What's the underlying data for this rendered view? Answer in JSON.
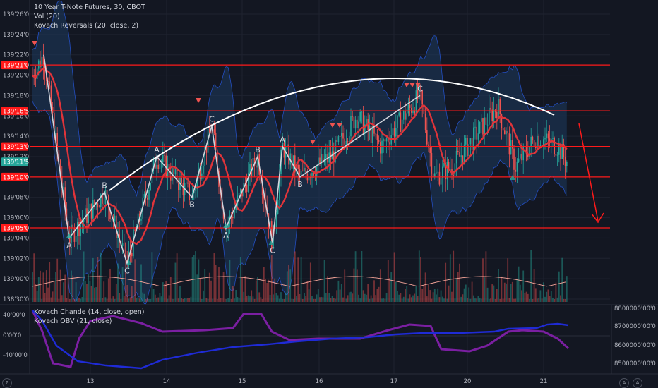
{
  "header": {
    "symbol_line": "10 Year T-Note Futures, 30, CBOT",
    "vol_label": "Vol (20)",
    "indicator_label": "Kovach Reversals (20, close, 2)"
  },
  "lower_pane": {
    "chande_label": "Kovach Chande (14, close, open)",
    "obv_label": "Kovach OBV (21, close)",
    "left_ticks": [
      "40'00'0",
      "0'00'0",
      "-40'00'0"
    ],
    "right_ticks": [
      "8800000'00'0",
      "8700000'00'0",
      "8600000'00'0",
      "8500000'00'0"
    ]
  },
  "price_axis": {
    "ticks": [
      "139'26'0",
      "139'24'0",
      "139'22'0",
      "139'20'0",
      "139'18'0",
      "139'16'0",
      "139'14'0",
      "139'12'0",
      "139'10'0",
      "139'08'0",
      "139'06'0",
      "139'04'0",
      "139'02'0",
      "139'00'0",
      "138'30'0"
    ],
    "level_tags": [
      "139'21'0",
      "139'16'5",
      "139'13'0",
      "139'11'5",
      "139'10'0",
      "139'05'0"
    ]
  },
  "time_axis": {
    "ticks": [
      "13",
      "14",
      "15",
      "16",
      "17",
      "20",
      "21"
    ]
  },
  "corner_marks": [
    "Z",
    "A",
    "A"
  ],
  "colors": {
    "background": "#131722",
    "candle_up": "#26a69a",
    "candle_down": "#ef5350",
    "level_line": "#ff1a1a",
    "band_fill": "#1e3a5f",
    "band_edge": "#2962ff",
    "ma_line": "#e0343a",
    "zigzag": "#d1d4dc",
    "arc": "#ffffff",
    "chande": "#7b1fa2",
    "obv": "#1f2bd6",
    "current_price": "#26a69a"
  },
  "chart_data": {
    "type": "candlestick",
    "title": "10 Year T-Note Futures, 30, CBOT",
    "price_levels": [
      "139'21'0",
      "139'16'5",
      "139'13'0",
      "139'10'0",
      "139'05'0"
    ],
    "current_price": "139'11'5",
    "zigzag_points": [
      {
        "x": "12.1",
        "y": "139'22'0"
      },
      {
        "x": "12.7",
        "y": "139'04'0",
        "label": "A"
      },
      {
        "x": "13.2",
        "y": "139'08'5",
        "label": "B"
      },
      {
        "x": "13.5",
        "y": "139'01'5",
        "label": "C"
      },
      {
        "x": "13.9",
        "y": "139'12'0",
        "label": "A"
      },
      {
        "x": "14.3",
        "y": "139'08'0",
        "label": "B"
      },
      {
        "x": "14.6",
        "y": "139'15'0",
        "label": "C"
      },
      {
        "x": "14.9",
        "y": "139'05'0",
        "label": "A"
      },
      {
        "x": "15.2",
        "y": "139'12'0",
        "label": "B"
      },
      {
        "x": "15.4",
        "y": "139'03'5",
        "label": "C"
      },
      {
        "x": "15.6",
        "y": "139'13'0",
        "label": "A"
      },
      {
        "x": "15.8",
        "y": "139'10'0",
        "label": "B"
      },
      {
        "x": "17.4",
        "y": "139'18'0",
        "label": "C"
      }
    ],
    "pattern_labels": [
      "A",
      "B",
      "C",
      "A",
      "B",
      "C",
      "A",
      "B",
      "C",
      "A",
      "B",
      "C"
    ],
    "annotations": [
      "rounded top arc",
      "downward arrow"
    ]
  }
}
